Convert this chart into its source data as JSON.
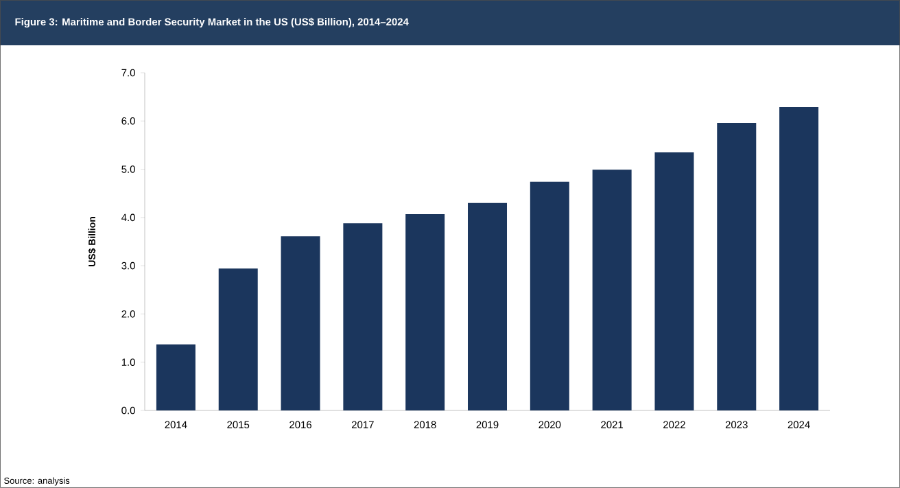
{
  "chart_data": {
    "type": "bar",
    "title": "Figure 3: Maritime and Border Security Market in the US (US$ Billion), 2014–2024",
    "ylabel": "US$ Billion",
    "categories": [
      "2014",
      "2015",
      "2016",
      "2017",
      "2018",
      "2019",
      "2020",
      "2021",
      "2022",
      "2023",
      "2024"
    ],
    "values": [
      1.37,
      2.94,
      3.61,
      3.88,
      4.07,
      4.3,
      4.74,
      4.99,
      5.35,
      5.96,
      6.29
    ],
    "color": "#1b365d",
    "ylim": [
      0,
      7
    ],
    "yticks": [
      {
        "value": 0,
        "label": "0.0"
      },
      {
        "value": 1,
        "label": "1.0"
      },
      {
        "value": 2,
        "label": "2.0"
      },
      {
        "value": 3,
        "label": "3.0"
      },
      {
        "value": 4,
        "label": "4.0"
      },
      {
        "value": 5,
        "label": "5.0"
      },
      {
        "value": 6,
        "label": "6.0"
      },
      {
        "value": 7,
        "label": "7.0"
      }
    ],
    "grid": false,
    "annotations": [
      "Source: analysis"
    ]
  }
}
